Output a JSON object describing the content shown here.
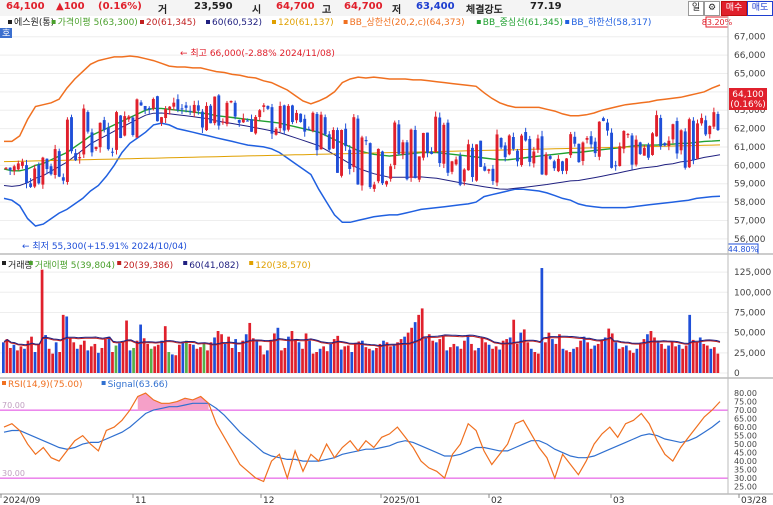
{
  "header": {
    "price": "64,100",
    "change": "▲100",
    "change_pct": "(0.16%)",
    "volume_label": "거",
    "volume": "23,590",
    "open_label": "시",
    "open": "64,700",
    "high_label": "고",
    "high": "64,700",
    "low_label": "저",
    "low": "63,400",
    "strength_label": "체결강도",
    "strength": "77.19",
    "period_button": "일",
    "gear_icon": "gear-icon",
    "buy_button": "매수",
    "sell_button": "매도"
  },
  "colors": {
    "up": "#e0202c",
    "down": "#1f4fd8",
    "ma5": "#4aa02c",
    "ma20": "#c02020",
    "ma60": "#202080",
    "ma120": "#e0a000",
    "bb_upper": "#f07020",
    "bb_mid": "#20a030",
    "bb_lower": "#2060e0",
    "rsi": "#f07020",
    "signal": "#3070d0"
  },
  "chart_data": [
    {
      "type": "candlestick",
      "title": "",
      "legend": [
        {
          "text": "에스원(통)",
          "color": "#222222"
        },
        {
          "text": "가격이평 5(63,300)",
          "color": "#4aa02c"
        },
        {
          "text": "20(61,345)",
          "color": "#c02020"
        },
        {
          "text": "60(60,532)",
          "color": "#202080"
        },
        {
          "text": "120(61,137)",
          "color": "#e0a000"
        },
        {
          "text": "BB_상한선(20,2,c)(64,373)",
          "color": "#f07020"
        },
        {
          "text": "BB_중심선(61,345)",
          "color": "#20a030"
        },
        {
          "text": "BB_하한선(58,317)",
          "color": "#2060e0"
        }
      ],
      "ho_label": "호",
      "y_axis_ticks": [
        56000,
        57000,
        58000,
        59000,
        60000,
        61000,
        62000,
        63000,
        64000,
        65000,
        66000,
        67000
      ],
      "y_axis_labels": [
        "56,000",
        "57,000",
        "58,000",
        "59,000",
        "60,000",
        "61,000",
        "62,000",
        "63,000",
        "64,000",
        "65,000",
        "66,000",
        "67,000"
      ],
      "ylim": [
        55500,
        67800
      ],
      "top_badge": "83.20%",
      "bottom_badge": "44.80%",
      "current_price_label": "64,100",
      "current_pct_label": "(0.16%)",
      "high_annotation": "최고 66,000(-2.88% 2024/11/08)",
      "low_annotation": "최저 55,300(+15.91% 2024/10/04)",
      "bb_upper": [
        61300,
        61300,
        61600,
        62500,
        63200,
        63300,
        63400,
        63600,
        64200,
        64700,
        65100,
        65500,
        65700,
        65800,
        65900,
        65900,
        65950,
        65900,
        65800,
        65700,
        65550,
        65400,
        65350,
        65350,
        65300,
        65300,
        65200,
        65100,
        65050,
        64950,
        64900,
        64800,
        64750,
        64600,
        64500,
        64300,
        64100,
        63800,
        63500,
        63350,
        63500,
        63700,
        64000,
        64500,
        64700,
        64800,
        64750,
        64800,
        64750,
        64700,
        64700,
        64700,
        64650,
        64650,
        64600,
        64550,
        64500,
        64450,
        64400,
        64350,
        64300,
        63950,
        63650,
        63400,
        63250,
        63150,
        63150,
        63150,
        63150,
        63050,
        62950,
        62800,
        62700,
        62700,
        62750,
        62850,
        63000,
        63100,
        63200,
        63300,
        63350,
        63400,
        63450,
        63550,
        63600,
        63650,
        63700,
        63800,
        63900,
        64000,
        64200,
        64373
      ],
      "bb_mid": [
        59800,
        59700,
        59700,
        59800,
        60000,
        60100,
        60300,
        60500,
        60700,
        61000,
        61300,
        61600,
        61800,
        62000,
        62200,
        62400,
        62600,
        62800,
        63000,
        63100,
        63100,
        63050,
        63000,
        62950,
        62900,
        62850,
        62800,
        62700,
        62650,
        62600,
        62550,
        62500,
        62450,
        62400,
        62350,
        62300,
        62200,
        62100,
        62000,
        61900,
        61800,
        61600,
        61400,
        61200,
        61000,
        60800,
        60700,
        60600,
        60550,
        60500,
        60550,
        60600,
        60650,
        60700,
        60700,
        60700,
        60650,
        60600,
        60550,
        60500,
        60450,
        60400,
        60350,
        60300,
        60300,
        60350,
        60400,
        60450,
        60500,
        60550,
        60600,
        60650,
        60700,
        60700,
        60750,
        60800,
        60850,
        60900,
        60950,
        61000,
        61050,
        61100,
        61100,
        61100,
        61150,
        61150,
        61200,
        61200,
        61250,
        61300,
        61320,
        61345
      ],
      "bb_lower": [
        58200,
        58100,
        57800,
        57100,
        56700,
        56800,
        57100,
        57400,
        57600,
        57900,
        58200,
        58600,
        58900,
        59400,
        60000,
        60700,
        61200,
        61500,
        61800,
        62200,
        62300,
        62200,
        62000,
        61900,
        61800,
        61700,
        61600,
        61500,
        61400,
        61300,
        61200,
        61100,
        61050,
        61000,
        60900,
        60700,
        60400,
        60100,
        59800,
        59500,
        58700,
        58000,
        57300,
        56900,
        56900,
        57000,
        57100,
        57200,
        57250,
        57300,
        57300,
        57400,
        57500,
        57600,
        57650,
        57700,
        57750,
        57800,
        57850,
        57900,
        58000,
        58300,
        58400,
        58500,
        58600,
        58700,
        58700,
        58650,
        58600,
        58500,
        58350,
        58200,
        58100,
        57900,
        57800,
        57750,
        57700,
        57700,
        57700,
        57700,
        57750,
        57800,
        57850,
        57900,
        57950,
        58000,
        58050,
        58100,
        58200,
        58250,
        58300,
        58317
      ]
    },
    {
      "type": "bar",
      "title": "",
      "legend": [
        {
          "text": "거래량",
          "color": "#222222"
        },
        {
          "text": "거래이평 5(39,804)",
          "color": "#4aa02c"
        },
        {
          "text": "20(39,386)",
          "color": "#c02020"
        },
        {
          "text": "60(41,082)",
          "color": "#202080"
        },
        {
          "text": "120(38,570)",
          "color": "#e0a000"
        }
      ],
      "y_axis_ticks": [
        0,
        25000,
        50000,
        75000,
        100000,
        125000
      ],
      "y_axis_labels": [
        "0",
        "25,000",
        "50,000",
        "75,000",
        "100,000",
        "125,000"
      ],
      "ylim": [
        0,
        135000
      ],
      "values": [
        38000,
        42000,
        31000,
        35000,
        28000,
        33000,
        30000,
        40000,
        45000,
        26000,
        36000,
        128000,
        47000,
        30000,
        24000,
        38000,
        26000,
        72000,
        70000,
        43000,
        38000,
        30000,
        35000,
        40000,
        28000,
        33000,
        36000,
        25000,
        31000,
        42000,
        45000,
        26000,
        34000,
        37000,
        38000,
        65000,
        28000,
        31000,
        40000,
        60000,
        43000,
        36000,
        30000,
        33000,
        35000,
        40000,
        58000,
        26000,
        23000,
        22000,
        35000,
        38000,
        40000,
        36000,
        35000,
        30000,
        32000,
        37000,
        28000,
        38000,
        44000,
        52000,
        48000,
        36000,
        45000,
        31000,
        42000,
        26000,
        40000,
        48000,
        62000,
        43000,
        41000,
        34000,
        23000,
        28000,
        41000,
        49000,
        56000,
        28000,
        31000,
        45000,
        52000,
        42000,
        38000,
        30000,
        49000,
        40000,
        24000,
        26000,
        30000,
        33000,
        27000,
        36000,
        42000,
        46000,
        29000,
        33000,
        34000,
        26000,
        37000,
        39000,
        40000,
        32000,
        30000,
        28000,
        31000,
        36000,
        40000,
        38000,
        33000,
        35000,
        38000,
        42000,
        45000,
        50000,
        56000,
        63000,
        72000,
        80000,
        44000,
        48000,
        40000,
        38000,
        42000,
        46000,
        28000,
        32000,
        36000,
        33000,
        30000,
        40000,
        47000,
        36000,
        28000,
        31000,
        43000,
        38000,
        35000,
        30000,
        33000,
        29000,
        40000,
        42000,
        44000,
        66000,
        36000,
        50000,
        54000,
        38000,
        30000,
        26000,
        24000,
        130000,
        38000,
        50000,
        42000,
        36000,
        48000,
        30000,
        28000,
        26000,
        30000,
        32000,
        40000,
        45000,
        38000,
        30000,
        34000,
        36000,
        41000,
        44000,
        55000,
        49000,
        38000,
        30000,
        32000,
        34000,
        28000,
        25000,
        30000,
        36000,
        42000,
        48000,
        52000,
        44000,
        40000,
        36000,
        30000,
        34000,
        38000,
        33000,
        35000,
        30000,
        34000,
        72000,
        41000,
        38000,
        44000,
        36000,
        34000,
        30000,
        32000,
        24000
      ]
    },
    {
      "type": "line",
      "title": "",
      "legend": [
        {
          "text": "RSI(14,9)(75.00)",
          "color": "#f07020"
        },
        {
          "text": "Signal(63.66)",
          "color": "#3070d0"
        }
      ],
      "y_axis_ticks": [
        25,
        30,
        35,
        40,
        45,
        50,
        55,
        60,
        65,
        70,
        75,
        80
      ],
      "y_axis_labels": [
        "25.00",
        "30.00",
        "35.00",
        "40.00",
        "45.00",
        "50.00",
        "55.00",
        "60.00",
        "65.00",
        "70.00",
        "75.00",
        "80.00"
      ],
      "ylim": [
        23,
        83
      ],
      "overbought": 70,
      "oversold": 30,
      "overbought_label": "70.00",
      "oversold_label": "30.00",
      "series": [
        {
          "name": "RSI(14,9)",
          "values": [
            60,
            62,
            58,
            50,
            44,
            48,
            42,
            40,
            46,
            52,
            55,
            50,
            46,
            58,
            60,
            64,
            70,
            78,
            80,
            76,
            74,
            74,
            75,
            77,
            76,
            78,
            74,
            62,
            54,
            46,
            38,
            34,
            30,
            28,
            40,
            44,
            30,
            46,
            34,
            44,
            40,
            50,
            42,
            48,
            52,
            46,
            52,
            48,
            54,
            56,
            60,
            54,
            48,
            40,
            36,
            34,
            30,
            44,
            50,
            62,
            58,
            46,
            38,
            44,
            50,
            62,
            64,
            56,
            48,
            42,
            30,
            44,
            38,
            32,
            40,
            50,
            56,
            60,
            54,
            62,
            64,
            68,
            62,
            52,
            44,
            40,
            48,
            54,
            60,
            66,
            70,
            75
          ]
        },
        {
          "name": "Signal",
          "values": [
            57,
            58,
            58,
            56,
            54,
            52,
            50,
            48,
            47,
            48,
            50,
            51,
            51,
            53,
            55,
            57,
            60,
            64,
            68,
            70,
            71,
            72,
            72,
            73,
            74,
            74,
            74,
            71,
            67,
            62,
            57,
            53,
            49,
            45,
            43,
            42,
            41,
            41,
            40,
            40,
            40,
            41,
            42,
            44,
            45,
            46,
            47,
            47,
            48,
            49,
            51,
            52,
            51,
            49,
            47,
            45,
            43,
            43,
            44,
            46,
            48,
            48,
            47,
            46,
            46,
            48,
            50,
            52,
            52,
            50,
            47,
            45,
            43,
            42,
            42,
            43,
            45,
            47,
            49,
            51,
            53,
            55,
            56,
            55,
            53,
            52,
            51,
            52,
            54,
            57,
            60,
            63.66
          ]
        }
      ]
    }
  ],
  "x_axis_labels": [
    "2024/09",
    "11",
    "12",
    "2025/01",
    "02",
    "03",
    "03/28"
  ]
}
